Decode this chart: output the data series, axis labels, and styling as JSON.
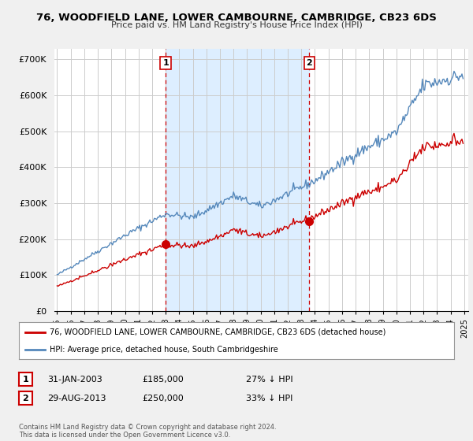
{
  "title": "76, WOODFIELD LANE, LOWER CAMBOURNE, CAMBRIDGE, CB23 6DS",
  "subtitle": "Price paid vs. HM Land Registry's House Price Index (HPI)",
  "red_label": "76, WOODFIELD LANE, LOWER CAMBOURNE, CAMBRIDGE, CB23 6DS (detached house)",
  "blue_label": "HPI: Average price, detached house, South Cambridgeshire",
  "sale1_date": "31-JAN-2003",
  "sale1_price": 185000,
  "sale1_note": "27% ↓ HPI",
  "sale2_date": "29-AUG-2013",
  "sale2_price": 250000,
  "sale2_note": "33% ↓ HPI",
  "copyright": "Contains HM Land Registry data © Crown copyright and database right 2024.\nThis data is licensed under the Open Government Licence v3.0.",
  "ylim": [
    0,
    730000
  ],
  "yticks": [
    0,
    100000,
    200000,
    300000,
    400000,
    500000,
    600000,
    700000
  ],
  "ytick_labels": [
    "£0",
    "£100K",
    "£200K",
    "£300K",
    "£400K",
    "£500K",
    "£600K",
    "£700K"
  ],
  "bg_color": "#f0f0f0",
  "plot_bg_color": "#ffffff",
  "red_color": "#cc0000",
  "blue_color": "#5588bb",
  "shade_color": "#ddeeff",
  "vline_color": "#cc0000",
  "grid_color": "#cccccc",
  "sale1_yf": 2003.0,
  "sale2_yf": 2013.583,
  "hpi_seed": 42,
  "red_seed": 7
}
